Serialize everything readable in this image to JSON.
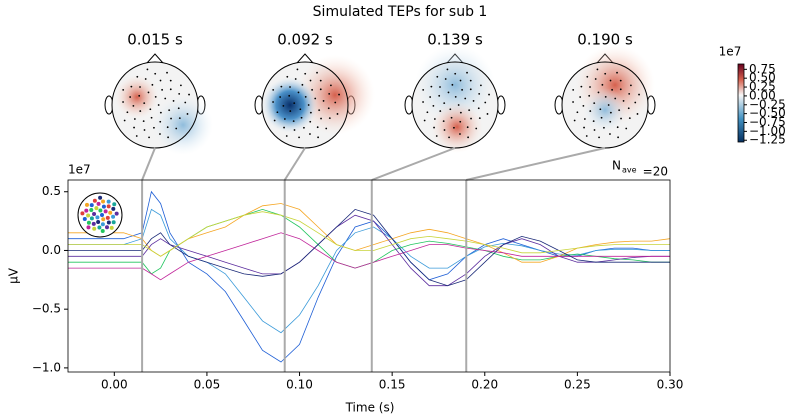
{
  "chart_data": {
    "type": "line",
    "title": "Simulated TEPs for sub 1",
    "topomap_times": [
      {
        "value": 0.015,
        "label": "0.015 s"
      },
      {
        "value": 0.092,
        "label": "0.092 s"
      },
      {
        "value": 0.139,
        "label": "0.139 s"
      },
      {
        "value": 0.19,
        "label": "0.190 s"
      }
    ],
    "colorbar": {
      "offset_label": "1e7",
      "lim": [
        -1.3,
        0.9
      ],
      "ticks": [
        {
          "value": 0.75,
          "label": "0.75"
        },
        {
          "value": 0.5,
          "label": "0.50"
        },
        {
          "value": 0.25,
          "label": "0.25"
        },
        {
          "value": 0,
          "label": "0.00"
        },
        {
          "value": -0.25,
          "label": "−0.25"
        },
        {
          "value": -0.5,
          "label": "−0.50"
        },
        {
          "value": -0.75,
          "label": "−0.75"
        },
        {
          "value": -1,
          "label": "−1.00"
        },
        {
          "value": -1.25,
          "label": "−1.25"
        }
      ]
    },
    "xlabel": "Time (s)",
    "ylabel": "µV",
    "y_offset_label": "1e7",
    "nave_label": [
      "N",
      "ave",
      "=20"
    ],
    "xlim": [
      -0.025,
      0.3
    ],
    "xticks": [
      {
        "value": 0,
        "label": "0.00"
      },
      {
        "value": 0.05,
        "label": "0.05"
      },
      {
        "value": 0.1,
        "label": "0.10"
      },
      {
        "value": 0.15,
        "label": "0.15"
      },
      {
        "value": 0.2,
        "label": "0.20"
      },
      {
        "value": 0.25,
        "label": "0.25"
      },
      {
        "value": 0.3,
        "label": "0.30"
      }
    ],
    "ylim": [
      -1.035,
      0.6
    ],
    "yticks": [
      {
        "value": -1,
        "label": "−1.0"
      },
      {
        "value": -0.5,
        "label": "−0.5"
      },
      {
        "value": 0,
        "label": "0.0"
      },
      0.5
    ],
    "x": [
      -0.025,
      -0.015,
      -0.005,
      0.005,
      0.015,
      0.02,
      0.025,
      0.03,
      0.04,
      0.05,
      0.06,
      0.07,
      0.08,
      0.09,
      0.1,
      0.11,
      0.12,
      0.13,
      0.14,
      0.15,
      0.16,
      0.17,
      0.18,
      0.19,
      0.2,
      0.21,
      0.22,
      0.23,
      0.24,
      0.25,
      0.26,
      0.27,
      0.28,
      0.29,
      0.3
    ],
    "series": [
      {
        "color": "#1f5fd6",
        "values": [
          0.1,
          0.1,
          0.1,
          0.1,
          0.15,
          0.5,
          0.4,
          0.15,
          -0.1,
          -0.2,
          -0.35,
          -0.6,
          -0.85,
          -0.95,
          -0.8,
          -0.4,
          -0.05,
          0.2,
          0.25,
          0.1,
          -0.1,
          -0.25,
          -0.2,
          -0.05,
          0.05,
          0.1,
          0.05,
          0,
          -0.05,
          -0.05,
          0,
          0.02,
          0.02,
          0,
          0
        ]
      },
      {
        "color": "#3a9ad9",
        "values": [
          0.05,
          0.05,
          0.05,
          0.05,
          0.1,
          0.35,
          0.3,
          0.1,
          -0.05,
          -0.1,
          -0.2,
          -0.4,
          -0.6,
          -0.7,
          -0.55,
          -0.3,
          0,
          0.15,
          0.2,
          0.1,
          -0.05,
          -0.15,
          -0.15,
          -0.05,
          0.03,
          0.06,
          0.04,
          0,
          -0.03,
          -0.04,
          0,
          0.01,
          0.01,
          0,
          0
        ]
      },
      {
        "color": "#22c55e",
        "values": [
          -0.1,
          -0.1,
          -0.1,
          -0.1,
          -0.1,
          -0.2,
          -0.15,
          0,
          0.1,
          0.2,
          0.25,
          0.3,
          0.35,
          0.3,
          0.2,
          0.05,
          -0.1,
          -0.15,
          -0.1,
          0,
          0.05,
          0.08,
          0.06,
          0.03,
          0,
          -0.05,
          -0.08,
          -0.08,
          -0.05,
          -0.03,
          -0.05,
          -0.07,
          -0.08,
          -0.1,
          -0.1
        ]
      },
      {
        "color": "#f5a623",
        "values": [
          0.15,
          0.15,
          0.15,
          0.15,
          0.1,
          0,
          -0.05,
          0,
          0.1,
          0.15,
          0.2,
          0.3,
          0.38,
          0.4,
          0.35,
          0.2,
          0.05,
          0,
          0.05,
          0.1,
          0.15,
          0.18,
          0.15,
          0.1,
          0.05,
          -0.02,
          -0.1,
          -0.1,
          -0.05,
          0.02,
          0.05,
          0.07,
          0.08,
          0.08,
          0.1
        ]
      },
      {
        "color": "#5b2d9e",
        "values": [
          -0.05,
          -0.05,
          -0.05,
          -0.05,
          -0.05,
          0.05,
          0.1,
          0.05,
          0,
          -0.05,
          -0.1,
          -0.15,
          -0.2,
          -0.2,
          -0.1,
          0.05,
          0.2,
          0.3,
          0.25,
          0.05,
          -0.15,
          -0.3,
          -0.3,
          -0.2,
          -0.05,
          0.05,
          0.1,
          0.05,
          -0.05,
          -0.1,
          -0.1,
          -0.08,
          -0.06,
          -0.05,
          -0.05
        ]
      },
      {
        "color": "#c0259a",
        "values": [
          -0.15,
          -0.15,
          -0.15,
          -0.15,
          -0.15,
          -0.2,
          -0.25,
          -0.2,
          -0.1,
          -0.05,
          0,
          0.05,
          0.1,
          0.15,
          0.1,
          0,
          -0.1,
          -0.15,
          -0.1,
          -0.05,
          0,
          0.05,
          0.05,
          0.02,
          0,
          -0.02,
          -0.05,
          -0.05,
          -0.05,
          -0.05,
          -0.05,
          -0.05,
          -0.05,
          -0.05,
          -0.05
        ]
      },
      {
        "color": "#1b2a78",
        "values": [
          0,
          0,
          0,
          0,
          0,
          0.1,
          0.15,
          0.05,
          -0.05,
          -0.1,
          -0.15,
          -0.2,
          -0.22,
          -0.2,
          -0.1,
          0.05,
          0.2,
          0.35,
          0.3,
          0.1,
          -0.1,
          -0.25,
          -0.3,
          -0.25,
          -0.1,
          0.05,
          0.12,
          0.08,
          0,
          -0.08,
          -0.1,
          -0.1,
          -0.1,
          -0.1,
          -0.1
        ]
      },
      {
        "color": "#c8d43a",
        "values": [
          0.05,
          0.05,
          0.05,
          0.05,
          0.05,
          0,
          -0.05,
          0,
          0.1,
          0.2,
          0.25,
          0.3,
          0.33,
          0.3,
          0.25,
          0.15,
          0.05,
          0,
          0,
          0.05,
          0.1,
          0.12,
          0.1,
          0.08,
          0.05,
          0.02,
          -0.02,
          -0.02,
          0,
          0.02,
          0.04,
          0.05,
          0.05,
          0.05,
          0.05
        ]
      }
    ]
  }
}
